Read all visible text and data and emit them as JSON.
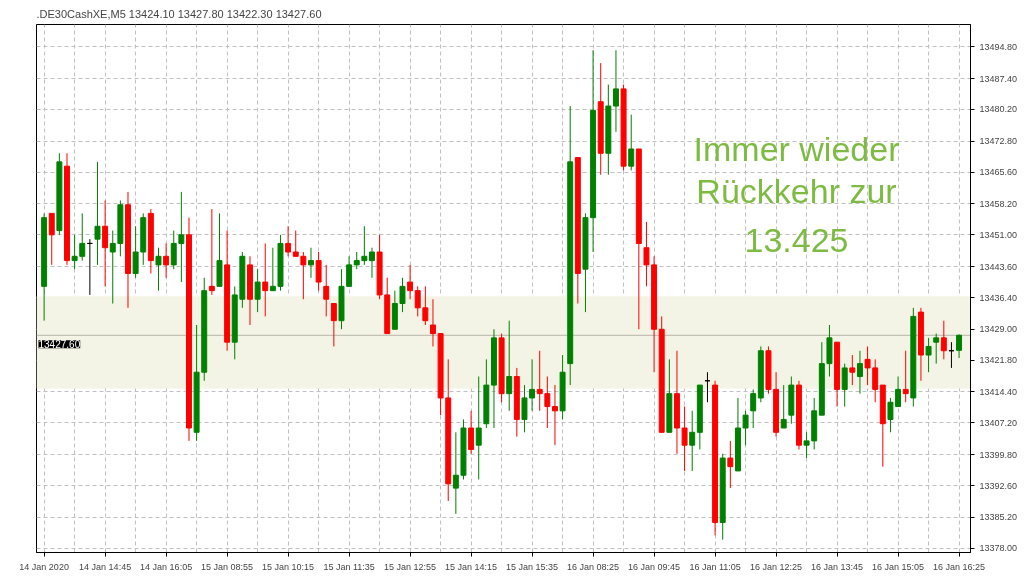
{
  "chart_data": {
    "type": "candlestick",
    "title": ".DE30CashXE,M5  13424.10 13427.80 13422.30 13427.60",
    "categories": [
      "14 Jan 2020",
      null,
      null,
      null,
      null,
      null,
      null,
      null,
      "14 Jan 14:45",
      null,
      null,
      null,
      null,
      null,
      null,
      null,
      "14 Jan 16:05",
      null,
      null,
      null,
      null,
      null,
      null,
      null,
      "15 Jan 08:55",
      null,
      null,
      null,
      null,
      null,
      null,
      null,
      "15 Jan 10:15",
      null,
      null,
      null,
      null,
      null,
      null,
      null,
      "15 Jan 11:35",
      null,
      null,
      null,
      null,
      null,
      null,
      null,
      "15 Jan 12:55",
      null,
      null,
      null,
      null,
      null,
      null,
      null,
      "15 Jan 14:15",
      null,
      null,
      null,
      null,
      null,
      null,
      null,
      "15 Jan 15:35",
      null,
      null,
      null,
      null,
      null,
      null,
      null,
      "16 Jan 08:25",
      null,
      null,
      null,
      null,
      null,
      null,
      null,
      "16 Jan 09:45",
      null,
      null,
      null,
      null,
      null,
      null,
      null,
      "16 Jan 11:05",
      null,
      null,
      null,
      null,
      null,
      null,
      null,
      "16 Jan 12:25",
      null,
      null,
      null,
      null,
      null,
      null,
      null,
      "16 Jan 13:45",
      null,
      null,
      null,
      null,
      null,
      null,
      null,
      "16 Jan 15:05",
      null,
      null,
      null,
      null,
      null,
      null,
      null,
      "16 Jan 16:25"
    ],
    "ohlc": [
      [
        13439,
        13456,
        13431,
        13455
      ],
      [
        13456,
        13456,
        13444,
        13451
      ],
      [
        13452,
        13470,
        13451,
        13468
      ],
      [
        13467,
        13470,
        13444,
        13445
      ],
      [
        13445,
        13451,
        13443,
        13446
      ],
      [
        13446,
        13456,
        13445,
        13449
      ],
      [
        13449,
        13450,
        13437,
        13449
      ],
      [
        13450,
        13468,
        13444,
        13453
      ],
      [
        13453,
        13459,
        13439,
        13448
      ],
      [
        13447,
        13452,
        13435,
        13449
      ],
      [
        13449,
        13459,
        13446,
        13458
      ],
      [
        13458,
        13461,
        13434,
        13442
      ],
      [
        13442,
        13453,
        13441,
        13447
      ],
      [
        13447,
        13456,
        13444,
        13455
      ],
      [
        13456,
        13457,
        13442,
        13445
      ],
      [
        13444,
        13448,
        13438,
        13446
      ],
      [
        13446,
        13449,
        13441,
        13444
      ],
      [
        13444,
        13452,
        13443,
        13449
      ],
      [
        13449,
        13461,
        13440,
        13451
      ],
      [
        13451,
        13455,
        13403,
        13406
      ],
      [
        13405,
        13430,
        13403,
        13419
      ],
      [
        13419,
        13441,
        13417,
        13438
      ],
      [
        13439,
        13457,
        13437,
        13438
      ],
      [
        13439,
        13456,
        13439,
        13445
      ],
      [
        13444,
        13452,
        13424,
        13426
      ],
      [
        13426,
        13439,
        13422,
        13437
      ],
      [
        13436,
        13447,
        13434,
        13446
      ],
      [
        13444,
        13446,
        13430,
        13436
      ],
      [
        13436,
        13443,
        13433,
        13440
      ],
      [
        13440,
        13449,
        13432,
        13438
      ],
      [
        13438,
        13448,
        13438,
        13439
      ],
      [
        13439,
        13451,
        13438,
        13449
      ],
      [
        13449,
        13453,
        13446,
        13447
      ],
      [
        13447,
        13452,
        13446,
        13446
      ],
      [
        13446,
        13447,
        13436,
        13444
      ],
      [
        13444,
        13448,
        13441,
        13445
      ],
      [
        13445,
        13447,
        13438,
        13440
      ],
      [
        13439,
        13444,
        13432,
        13436
      ],
      [
        13435,
        13435,
        13425,
        13431
      ],
      [
        13431,
        13443,
        13429,
        13439
      ],
      [
        13439,
        13446,
        13439,
        13444
      ],
      [
        13444,
        13447,
        13443,
        13445
      ],
      [
        13445,
        13453,
        13444,
        13446
      ],
      [
        13445,
        13448,
        13441,
        13447
      ],
      [
        13447,
        13451,
        13436,
        13437
      ],
      [
        13437,
        13441,
        13428,
        13428
      ],
      [
        13429,
        13438,
        13429,
        13435
      ],
      [
        13435,
        13441,
        13433,
        13439
      ],
      [
        13440,
        13444,
        13436,
        13438
      ],
      [
        13438,
        13439,
        13432,
        13434
      ],
      [
        13434,
        13439,
        13430,
        13431
      ],
      [
        13430,
        13436,
        13425,
        13428
      ],
      [
        13428,
        13428,
        13409,
        13413
      ],
      [
        13413,
        13422,
        13389,
        13393
      ],
      [
        13392,
        13405,
        13386,
        13395
      ],
      [
        13395,
        13408,
        13394,
        13406
      ],
      [
        13406,
        13410,
        13400,
        13401
      ],
      [
        13402,
        13418,
        13394,
        13406
      ],
      [
        13407,
        13422,
        13406,
        13416
      ],
      [
        13416,
        13429,
        13406,
        13427
      ],
      [
        13427,
        13428,
        13412,
        13414
      ],
      [
        13414,
        13431,
        13410,
        13418
      ],
      [
        13418,
        13420,
        13404,
        13408
      ],
      [
        13408,
        13416,
        13405,
        13413
      ],
      [
        13413,
        13422,
        13410,
        13415
      ],
      [
        13415,
        13424,
        13410,
        13414
      ],
      [
        13414,
        13418,
        13406,
        13411
      ],
      [
        13411,
        13416,
        13402,
        13410
      ],
      [
        13410,
        13423,
        13408,
        13419
      ],
      [
        13421,
        13481,
        13416,
        13468
      ],
      [
        13469,
        13469,
        13435,
        13442
      ],
      [
        13443,
        13456,
        13433,
        13455
      ],
      [
        13455,
        13494,
        13447,
        13480
      ],
      [
        13482,
        13491,
        13465,
        13470
      ],
      [
        13470,
        13486,
        13465,
        13481
      ],
      [
        13481,
        13494,
        13475,
        13485
      ],
      [
        13485,
        13486,
        13466,
        13467
      ],
      [
        13467,
        13479,
        13466,
        13471
      ],
      [
        13471,
        13471,
        13429,
        13449
      ],
      [
        13448,
        13454,
        13439,
        13444
      ],
      [
        13444,
        13446,
        13419,
        13429
      ],
      [
        13429,
        13432,
        13405,
        13405
      ],
      [
        13405,
        13422,
        13405,
        13414
      ],
      [
        13414,
        13424,
        13400,
        13406
      ],
      [
        13406,
        13411,
        13396,
        13402
      ],
      [
        13402,
        13410,
        13396,
        13405
      ],
      [
        13405,
        13416,
        13401,
        13416
      ],
      [
        13417,
        13419,
        13412,
        13417
      ],
      [
        13416,
        13417,
        13381,
        13384
      ],
      [
        13384,
        13400,
        13380,
        13399
      ],
      [
        13399,
        13403,
        13392,
        13397
      ],
      [
        13396,
        13413,
        13396,
        13406
      ],
      [
        13406,
        13410,
        13402,
        13409
      ],
      [
        13410,
        13415,
        13406,
        13414
      ],
      [
        13413,
        13425,
        13412,
        13424
      ],
      [
        13424,
        13425,
        13414,
        13415
      ],
      [
        13415,
        13419,
        13404,
        13405
      ],
      [
        13406,
        13416,
        13406,
        13408
      ],
      [
        13409,
        13418,
        13407,
        13416
      ],
      [
        13416,
        13417,
        13401,
        13402
      ],
      [
        13402,
        13405,
        13399,
        13403
      ],
      [
        13403,
        13413,
        13401,
        13410
      ],
      [
        13409,
        13426,
        13409,
        13421
      ],
      [
        13421,
        13430,
        13418,
        13427
      ],
      [
        13426,
        13426,
        13411,
        13415
      ],
      [
        13415,
        13421,
        13411,
        13420
      ],
      [
        13420,
        13423,
        13416,
        13419
      ],
      [
        13418,
        13424,
        13414,
        13421
      ],
      [
        13422,
        13425,
        13416,
        13420
      ],
      [
        13420,
        13422,
        13412,
        13415
      ],
      [
        13416,
        13416,
        13397,
        13407
      ],
      [
        13408,
        13413,
        13405,
        13412
      ],
      [
        13411,
        13418,
        13411,
        13415
      ],
      [
        13415,
        13424,
        13412,
        13414
      ],
      [
        13413,
        13434,
        13411,
        13432
      ],
      [
        13433,
        13434,
        13417,
        13423
      ],
      [
        13423,
        13427,
        13419,
        13425
      ],
      [
        13426,
        13428,
        13421,
        13427
      ],
      [
        13427,
        13431,
        13422,
        13424
      ],
      [
        13424,
        13426,
        13420,
        13424
      ],
      [
        13424.1,
        13427.8,
        13422.3,
        13427.6
      ]
    ],
    "colors": [
      "#008000",
      "#ff0000",
      "#008000",
      "#ff0000",
      "#008000",
      "#008000",
      "#000000",
      "#008000",
      "#ff0000",
      "#008000",
      "#008000",
      "#ff0000",
      "#008000",
      "#008000",
      "#ff0000",
      "#008000",
      "#ff0000",
      "#008000",
      "#008000",
      "#ff0000",
      "#008000",
      "#008000",
      "#ff0000",
      "#008000",
      "#ff0000",
      "#008000",
      "#008000",
      "#ff0000",
      "#008000",
      "#ff0000",
      "#008000",
      "#008000",
      "#ff0000",
      "#ff0000",
      "#ff0000",
      "#008000",
      "#ff0000",
      "#ff0000",
      "#ff0000",
      "#008000",
      "#008000",
      "#008000",
      "#008000",
      "#008000",
      "#ff0000",
      "#ff0000",
      "#008000",
      "#008000",
      "#ff0000",
      "#ff0000",
      "#ff0000",
      "#ff0000",
      "#ff0000",
      "#ff0000",
      "#008000",
      "#008000",
      "#ff0000",
      "#008000",
      "#008000",
      "#008000",
      "#ff0000",
      "#008000",
      "#ff0000",
      "#008000",
      "#008000",
      "#ff0000",
      "#ff0000",
      "#ff0000",
      "#008000",
      "#008000",
      "#ff0000",
      "#008000",
      "#008000",
      "#ff0000",
      "#008000",
      "#008000",
      "#ff0000",
      "#008000",
      "#ff0000",
      "#ff0000",
      "#ff0000",
      "#ff0000",
      "#008000",
      "#ff0000",
      "#ff0000",
      "#008000",
      "#008000",
      "#000000",
      "#ff0000",
      "#008000",
      "#ff0000",
      "#008000",
      "#008000",
      "#008000",
      "#008000",
      "#ff0000",
      "#ff0000",
      "#008000",
      "#008000",
      "#ff0000",
      "#008000",
      "#008000",
      "#008000",
      "#008000",
      "#ff0000",
      "#008000",
      "#ff0000",
      "#008000",
      "#ff0000",
      "#ff0000",
      "#ff0000",
      "#008000",
      "#008000",
      "#ff0000",
      "#008000",
      "#ff0000",
      "#008000",
      "#008000",
      "#ff0000",
      "#000000",
      "#008000"
    ],
    "ylim": [
      13377,
      13500
    ],
    "yticks": [
      {
        "value": 13378,
        "label": "13378.00"
      },
      {
        "value": 13385.2,
        "label": "13385.20"
      },
      {
        "value": 13392.6,
        "label": "13392.60"
      },
      {
        "value": 13399.8,
        "label": "13399.80"
      },
      {
        "value": 13407.2,
        "label": "13407.20"
      },
      {
        "value": 13414.4,
        "label": "13414.40"
      },
      {
        "value": 13421.8,
        "label": "13421.80"
      },
      {
        "value": 13429,
        "label": "13429.00"
      },
      {
        "value": 13436.4,
        "label": "13436.40"
      },
      {
        "value": 13443.6,
        "label": "13443.60"
      },
      {
        "value": 13451,
        "label": "13451.00"
      },
      {
        "value": 13458.2,
        "label": "13458.20"
      },
      {
        "value": 13465.6,
        "label": "13465.60"
      },
      {
        "value": 13472.8,
        "label": "13472.80"
      },
      {
        "value": 13480.2,
        "label": "13480.20"
      },
      {
        "value": 13487.4,
        "label": "13487.40"
      },
      {
        "value": 13494.8,
        "label": "13494.80"
      }
    ],
    "grid": true,
    "bands": [
      {
        "axis": "y",
        "from": 13415.2,
        "to": 13436.7,
        "color": "#f4f4e6"
      }
    ],
    "ref_lines": [
      {
        "axis": "y",
        "value": 13427.6,
        "label": "13427.60",
        "color": "#b4b4aa"
      }
    ],
    "annotations": [
      "Immer wieder\nRückkehr zur\n13.425"
    ]
  }
}
